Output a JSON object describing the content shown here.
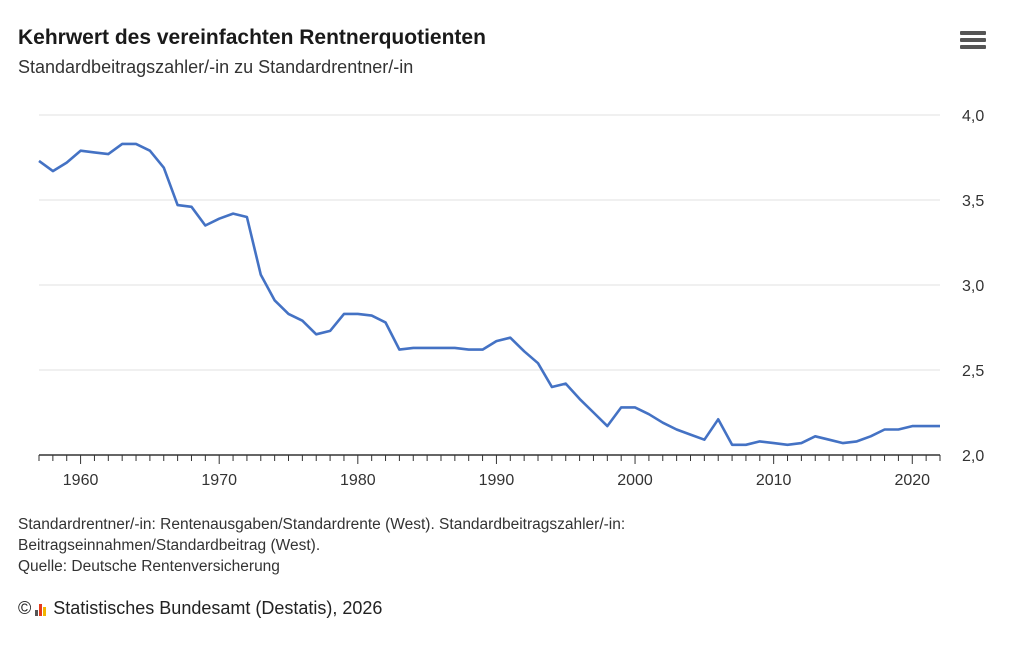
{
  "header": {
    "title": "Kehrwert des vereinfachten Rentnerquotienten",
    "subtitle": "Standardbeitragszahler/-in zu Standardrentner/-in",
    "menu_icon": "hamburger-menu-icon"
  },
  "footer": {
    "note_line1": "Standardrentner/-in: Rentenausgaben/Standardrente (West). Standardbeitragszahler/-in:",
    "note_line2": "Beitragseinnahmen/Standardbeitrag (West).",
    "source": "Quelle: Deutsche Rentenversicherung",
    "copyright_symbol": "©",
    "copyright_text": "Statistisches Bundesamt (Destatis), 2026"
  },
  "colors": {
    "line": "#4472c4",
    "grid": "#e0e0e0",
    "axis": "#333333"
  },
  "chart_data": {
    "type": "line",
    "title": "Kehrwert des vereinfachten Rentnerquotienten",
    "subtitle": "Standardbeitragszahler/-in zu Standardrentner/-in",
    "xlabel": "",
    "ylabel": "",
    "xlim": [
      1957,
      2022
    ],
    "ylim": [
      2.0,
      4.0
    ],
    "y_axis_side": "right",
    "grid": true,
    "x_ticks": [
      1960,
      1970,
      1980,
      1990,
      2000,
      2010,
      2020
    ],
    "y_ticks": [
      "2,0",
      "2,5",
      "3,0",
      "3,5",
      "4,0"
    ],
    "x": [
      1957,
      1958,
      1959,
      1960,
      1961,
      1962,
      1963,
      1964,
      1965,
      1966,
      1967,
      1968,
      1969,
      1970,
      1971,
      1972,
      1973,
      1974,
      1975,
      1976,
      1977,
      1978,
      1979,
      1980,
      1981,
      1982,
      1983,
      1984,
      1985,
      1986,
      1987,
      1988,
      1989,
      1990,
      1991,
      1992,
      1993,
      1994,
      1995,
      1996,
      1997,
      1998,
      1999,
      2000,
      2001,
      2002,
      2003,
      2004,
      2005,
      2006,
      2007,
      2008,
      2009,
      2010,
      2011,
      2012,
      2013,
      2014,
      2015,
      2016,
      2017,
      2018,
      2019,
      2020,
      2021,
      2022
    ],
    "values": [
      3.73,
      3.67,
      3.72,
      3.79,
      3.78,
      3.77,
      3.83,
      3.83,
      3.79,
      3.69,
      3.47,
      3.46,
      3.35,
      3.39,
      3.42,
      3.4,
      3.06,
      2.91,
      2.83,
      2.79,
      2.71,
      2.73,
      2.83,
      2.83,
      2.82,
      2.78,
      2.62,
      2.63,
      2.63,
      2.63,
      2.63,
      2.62,
      2.62,
      2.67,
      2.69,
      2.61,
      2.54,
      2.4,
      2.42,
      2.33,
      2.25,
      2.17,
      2.28,
      2.28,
      2.24,
      2.19,
      2.15,
      2.12,
      2.09,
      2.21,
      2.06,
      2.06,
      2.08,
      2.07,
      2.06,
      2.07,
      2.11,
      2.09,
      2.07,
      2.08,
      2.11,
      2.15,
      2.15,
      2.17,
      2.17,
      2.17
    ]
  }
}
